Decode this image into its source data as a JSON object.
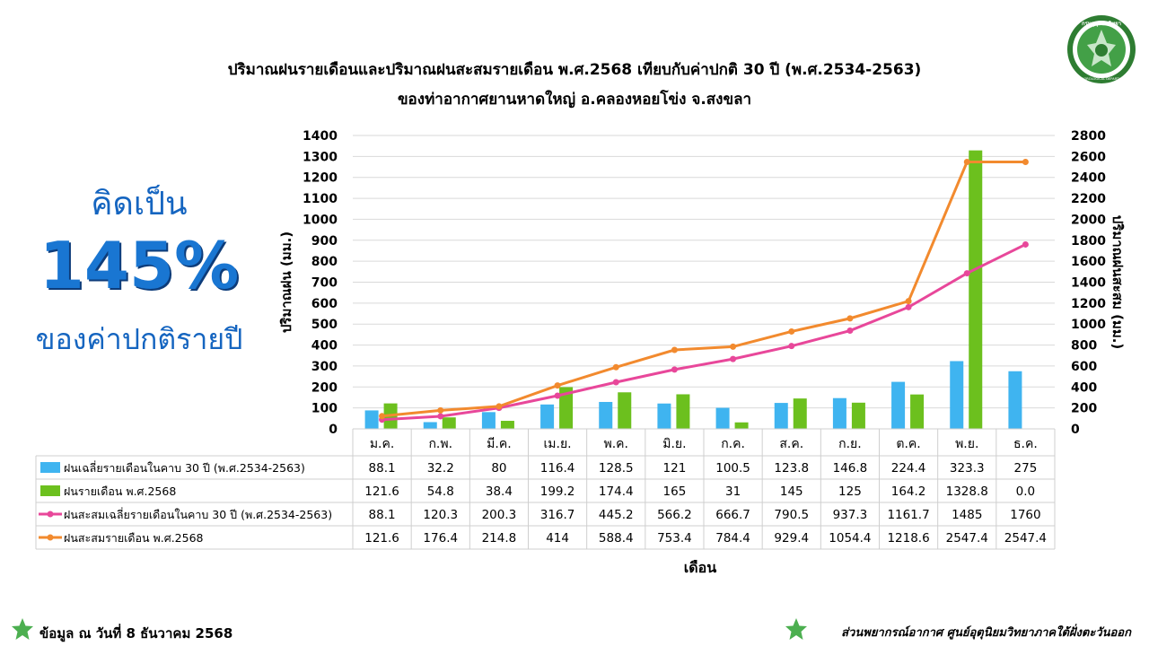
{
  "header": {
    "title_line1": "ปริมาณฝนรายเดือนและปริมาณฝนสะสมรายเดือน  พ.ศ.2568  เทียบกับค่าปกติ 30 ปี (พ.ศ.2534-2563)",
    "title_line2": "ของท่าอากาศยานหาดใหญ่  อ.คลองหอยโข่ง  จ.สงขลา",
    "logo_icon": "meteorological-department-seal-icon",
    "logo_text": "METEOROLOGICAL DEPARTMENT"
  },
  "summary": {
    "line1": "คิดเป็น",
    "percent": "145%",
    "line3": "ของค่าปกติรายปี"
  },
  "footer": {
    "left_text": "ข้อมูล ณ วันที่ 8 ธันวาคม 2568",
    "right_text": "ส่วนพยากรณ์อากาศ ศูนย์อุตุนิยมวิทยาภาคใต้ฝั่งตะวันออก",
    "star_color": "#4caf50"
  },
  "chart_data": {
    "type": "bar",
    "categories": [
      "ม.ค.",
      "ก.พ.",
      "มี.ค.",
      "เม.ย.",
      "พ.ค.",
      "มิ.ย.",
      "ก.ค.",
      "ส.ค.",
      "ก.ย.",
      "ต.ค.",
      "พ.ย.",
      "ธ.ค."
    ],
    "xlabel": "เดือน",
    "ylabel": "ปริมาณฝน (มม.)",
    "y2label": "ปริมาณฝนสะสม (มม.)",
    "ylim": [
      0,
      1400
    ],
    "y2lim": [
      0,
      2800
    ],
    "yticks": [
      0,
      100,
      200,
      300,
      400,
      500,
      600,
      700,
      800,
      900,
      1000,
      1100,
      1200,
      1300,
      1400
    ],
    "y2ticks": [
      0,
      200,
      400,
      600,
      800,
      1000,
      1200,
      1400,
      1600,
      1800,
      2000,
      2200,
      2400,
      2600,
      2800
    ],
    "grid": true,
    "legend_placement": "data-table",
    "series": [
      {
        "name": "ฝนเฉลี่ยรายเดือนในคาบ 30 ปี (พ.ศ.2534-2563)",
        "kind": "bar",
        "axis": "left",
        "color": "#3fb4f0",
        "values": [
          88.1,
          32.2,
          80,
          116.4,
          128.5,
          121,
          100.5,
          123.8,
          146.8,
          224.4,
          323.3,
          275
        ],
        "labels": [
          "88.1",
          "32.2",
          "80",
          "116.4",
          "128.5",
          "121",
          "100.5",
          "123.8",
          "146.8",
          "224.4",
          "323.3",
          "275"
        ]
      },
      {
        "name": "ฝนรายเดือน พ.ศ.2568",
        "kind": "bar",
        "axis": "left",
        "color": "#6cc01e",
        "values": [
          121.6,
          54.8,
          38.4,
          199.2,
          174.4,
          165,
          31,
          145,
          125,
          164.2,
          1328.8,
          0
        ],
        "labels": [
          "121.6",
          "54.8",
          "38.4",
          "199.2",
          "174.4",
          "165",
          "31",
          "145",
          "125",
          "164.2",
          "1328.8",
          "0.0"
        ]
      },
      {
        "name": "ฝนสะสมเฉลี่ยรายเดือนในคาบ 30 ปี (พ.ศ.2534-2563)",
        "kind": "line",
        "axis": "right",
        "color": "#e8479a",
        "values": [
          88.1,
          120.3,
          200.3,
          316.7,
          445.2,
          566.2,
          666.7,
          790.5,
          937.3,
          1161.7,
          1485,
          1760
        ],
        "labels": [
          "88.1",
          "120.3",
          "200.3",
          "316.7",
          "445.2",
          "566.2",
          "666.7",
          "790.5",
          "937.3",
          "1161.7",
          "1485",
          "1760"
        ]
      },
      {
        "name": "ฝนสะสมรายเดือน พ.ศ.2568",
        "kind": "line",
        "axis": "right",
        "color": "#f28a2e",
        "values": [
          121.6,
          176.4,
          214.8,
          414,
          588.4,
          753.4,
          784.4,
          929.4,
          1054.4,
          1218.6,
          2547.4,
          2547.4
        ],
        "labels": [
          "121.6",
          "176.4",
          "214.8",
          "414",
          "588.4",
          "753.4",
          "784.4",
          "929.4",
          "1054.4",
          "1218.6",
          "2547.4",
          "2547.4"
        ]
      }
    ]
  }
}
